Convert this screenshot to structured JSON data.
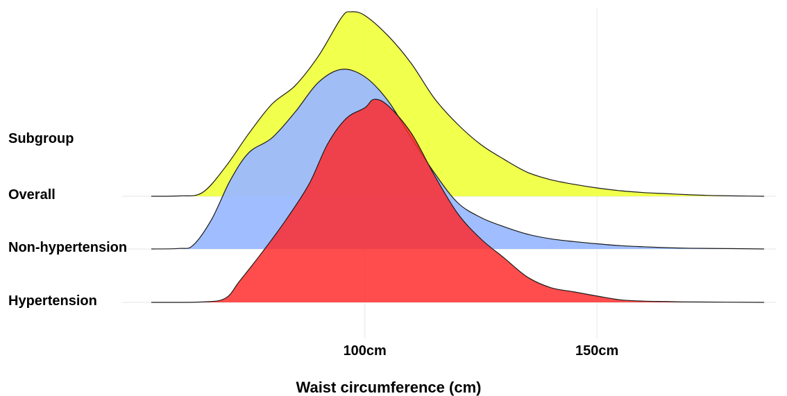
{
  "chart_data": {
    "type": "area",
    "subtype": "ridgeline-density",
    "row_header": "Subgroup",
    "xlabel": "Waist circumference (cm)",
    "x_ticks": [
      {
        "value": 100,
        "label": "100cm"
      },
      {
        "value": 150,
        "label": "150cm"
      }
    ],
    "xlim": [
      54,
      186
    ],
    "grid": true,
    "series": [
      {
        "name": "Overall",
        "color": "#f0ff3a",
        "density": [
          [
            54,
            0.0
          ],
          [
            60,
            0.002
          ],
          [
            65,
            0.02
          ],
          [
            70,
            0.16
          ],
          [
            75,
            0.34
          ],
          [
            80,
            0.5
          ],
          [
            85,
            0.6
          ],
          [
            90,
            0.76
          ],
          [
            95,
            0.97
          ],
          [
            97,
            1.0
          ],
          [
            100,
            0.98
          ],
          [
            105,
            0.87
          ],
          [
            110,
            0.72
          ],
          [
            115,
            0.53
          ],
          [
            120,
            0.39
          ],
          [
            125,
            0.28
          ],
          [
            130,
            0.2
          ],
          [
            135,
            0.13
          ],
          [
            140,
            0.09
          ],
          [
            145,
            0.065
          ],
          [
            150,
            0.045
          ],
          [
            155,
            0.03
          ],
          [
            160,
            0.02
          ],
          [
            165,
            0.014
          ],
          [
            170,
            0.008
          ],
          [
            175,
            0.004
          ],
          [
            180,
            0.002
          ],
          [
            186,
            0.0
          ]
        ]
      },
      {
        "name": "Non-hypertension",
        "color": "#9bb9ff",
        "density": [
          [
            54,
            0.0
          ],
          [
            60,
            0.003
          ],
          [
            63,
            0.02
          ],
          [
            67,
            0.16
          ],
          [
            71,
            0.37
          ],
          [
            75,
            0.52
          ],
          [
            80,
            0.6
          ],
          [
            85,
            0.74
          ],
          [
            90,
            0.9
          ],
          [
            95,
            0.97
          ],
          [
            100,
            0.93
          ],
          [
            105,
            0.8
          ],
          [
            110,
            0.6
          ],
          [
            115,
            0.41
          ],
          [
            120,
            0.25
          ],
          [
            125,
            0.17
          ],
          [
            130,
            0.12
          ],
          [
            135,
            0.08
          ],
          [
            140,
            0.055
          ],
          [
            145,
            0.04
          ],
          [
            150,
            0.028
          ],
          [
            155,
            0.018
          ],
          [
            160,
            0.012
          ],
          [
            165,
            0.007
          ],
          [
            170,
            0.004
          ],
          [
            180,
            0.002
          ],
          [
            186,
            0.0
          ]
        ]
      },
      {
        "name": "Hypertension",
        "color": "#ff2626",
        "density": [
          [
            54,
            0.0
          ],
          [
            65,
            0.002
          ],
          [
            70,
            0.02
          ],
          [
            73,
            0.1
          ],
          [
            78,
            0.24
          ],
          [
            83,
            0.39
          ],
          [
            88,
            0.56
          ],
          [
            92,
            0.75
          ],
          [
            96,
            0.87
          ],
          [
            100,
            0.92
          ],
          [
            102,
            0.96
          ],
          [
            105,
            0.93
          ],
          [
            110,
            0.8
          ],
          [
            115,
            0.6
          ],
          [
            120,
            0.42
          ],
          [
            125,
            0.3
          ],
          [
            130,
            0.21
          ],
          [
            135,
            0.12
          ],
          [
            140,
            0.07
          ],
          [
            145,
            0.05
          ],
          [
            150,
            0.03
          ],
          [
            155,
            0.012
          ],
          [
            160,
            0.006
          ],
          [
            165,
            0.004
          ],
          [
            170,
            0.002
          ],
          [
            186,
            0.0
          ]
        ]
      }
    ]
  }
}
